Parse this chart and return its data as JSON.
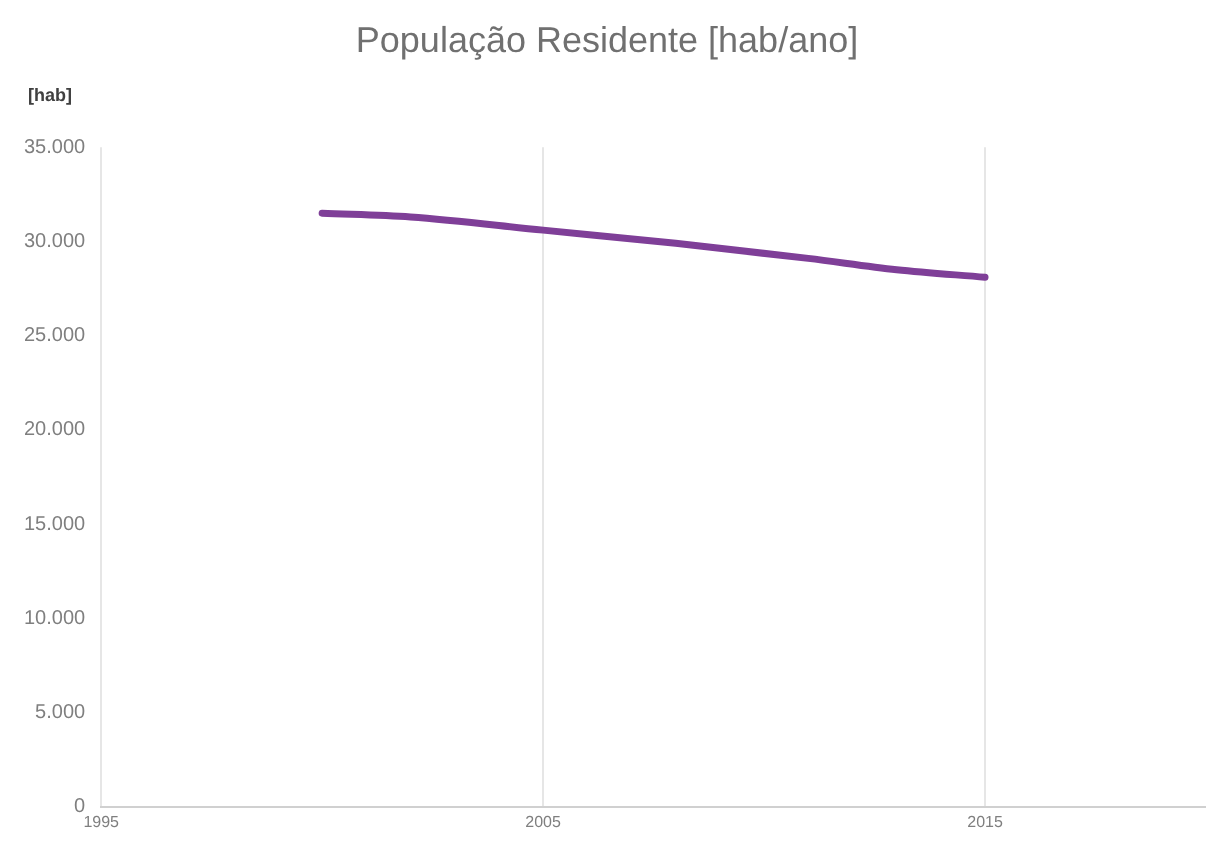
{
  "chart_data": {
    "type": "line",
    "title": "População Residente [hab/ano]",
    "ylabel": "[hab]",
    "x": [
      2000,
      2002,
      2005,
      2008,
      2011,
      2013,
      2015
    ],
    "series": [
      {
        "color": "#7f3f98",
        "values": [
          31500,
          31300,
          30600,
          29900,
          29100,
          28500,
          28100
        ]
      }
    ],
    "xlim": [
      1995,
      2020
    ],
    "xticks": [
      1995,
      2005,
      2015
    ],
    "ylim": [
      0,
      35000
    ],
    "yticks": [
      {
        "value": 0,
        "label": "0"
      },
      {
        "value": 5000,
        "label": "5.000"
      },
      {
        "value": 10000,
        "label": "10.000"
      },
      {
        "value": 15000,
        "label": "15.000"
      },
      {
        "value": 20000,
        "label": "20.000"
      },
      {
        "value": 25000,
        "label": "25.000"
      },
      {
        "value": 30000,
        "label": "30.000"
      },
      {
        "value": 35000,
        "label": "35.000"
      }
    ],
    "grid": "x",
    "legend": false,
    "marker": "none",
    "line_style": "solid"
  }
}
